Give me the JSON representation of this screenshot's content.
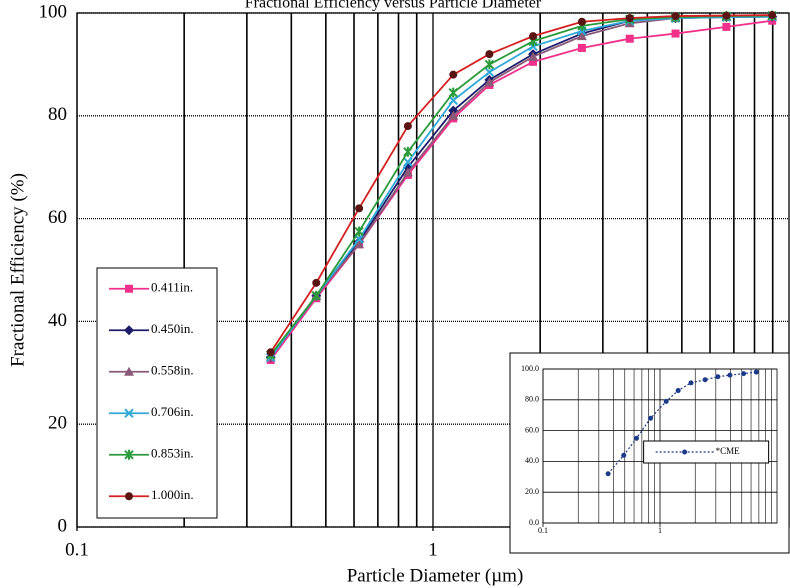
{
  "chart_data": [
    {
      "type": "line",
      "title": "Fractional Efficiency versus Particle Diameter",
      "x_label": "Particle Diameter (µm)",
      "y_label": "Fractional Efficiency (%)",
      "xscale": "log",
      "xlim": [
        0.1,
        10
      ],
      "xticks": [
        0.1,
        1
      ],
      "ylim": [
        0,
        100
      ],
      "yticks": [
        0,
        20,
        40,
        60,
        80,
        100
      ],
      "grid": true,
      "legend": "lower left",
      "x": [
        0.35,
        0.47,
        0.62,
        0.85,
        1.14,
        1.44,
        1.91,
        2.62,
        3.57,
        4.8,
        6.67,
        8.97
      ],
      "series": [
        {
          "name": "0.411in.",
          "color": "#f0308a",
          "marker": "square",
          "values": [
            32.5,
            44.5,
            55,
            68.5,
            79.5,
            86,
            90.5,
            93.2,
            95,
            96,
            97.3,
            98.5
          ]
        },
        {
          "name": "0.450in.",
          "color": "#1c1c6a",
          "marker": "diamond",
          "values": [
            33,
            45,
            55.5,
            70,
            81,
            87,
            92,
            96,
            98.5,
            99,
            99.2,
            99.3
          ]
        },
        {
          "name": "0.558in.",
          "color": "#8a5a78",
          "marker": "triangle",
          "values": [
            33,
            45,
            55,
            69,
            80,
            86.5,
            91.5,
            95.5,
            98,
            99,
            99.2,
            99.3
          ]
        },
        {
          "name": "0.706in.",
          "color": "#30a8d8",
          "marker": "x",
          "values": [
            33,
            45,
            56,
            71,
            83,
            88.5,
            93.5,
            96.5,
            98.5,
            99,
            99.2,
            99.3
          ]
        },
        {
          "name": "0.853in.",
          "color": "#2a9a3a",
          "marker": "star",
          "values": [
            33.5,
            45,
            57.5,
            73,
            84.5,
            90,
            94.5,
            97.5,
            98.8,
            99.2,
            99.4,
            99.5
          ]
        },
        {
          "name": "1.000in.",
          "color": "#d42020",
          "marker": "circle",
          "values": [
            34,
            47.5,
            62,
            78,
            88,
            92,
            95.5,
            98.3,
            99,
            99.4,
            99.5,
            99.6
          ]
        }
      ]
    },
    {
      "type": "line",
      "xscale": "log",
      "xlim": [
        0.1,
        10
      ],
      "xticks": [
        0.1,
        1
      ],
      "ylim": [
        0,
        100
      ],
      "yticks": [
        {
          "value": 0,
          "label": "0.0"
        },
        {
          "value": 20,
          "label": "20.0"
        },
        {
          "value": 40,
          "label": "40.0"
        },
        {
          "value": 60,
          "label": "60.0"
        },
        {
          "value": 80,
          "label": "80.0"
        },
        {
          "value": 100,
          "label": "100.0"
        }
      ],
      "grid": true,
      "legend": "center right",
      "x": [
        0.36,
        0.49,
        0.63,
        0.83,
        1.13,
        1.43,
        1.84,
        2.43,
        3.12,
        3.96,
        5.18,
        6.65
      ],
      "series": [
        {
          "name": "*CME",
          "color": "#1c3a8a",
          "marker": "circle",
          "dash": "2 2",
          "values": [
            32,
            44,
            55,
            68,
            79,
            86,
            91,
            93,
            95,
            96,
            97,
            98
          ]
        }
      ]
    }
  ]
}
